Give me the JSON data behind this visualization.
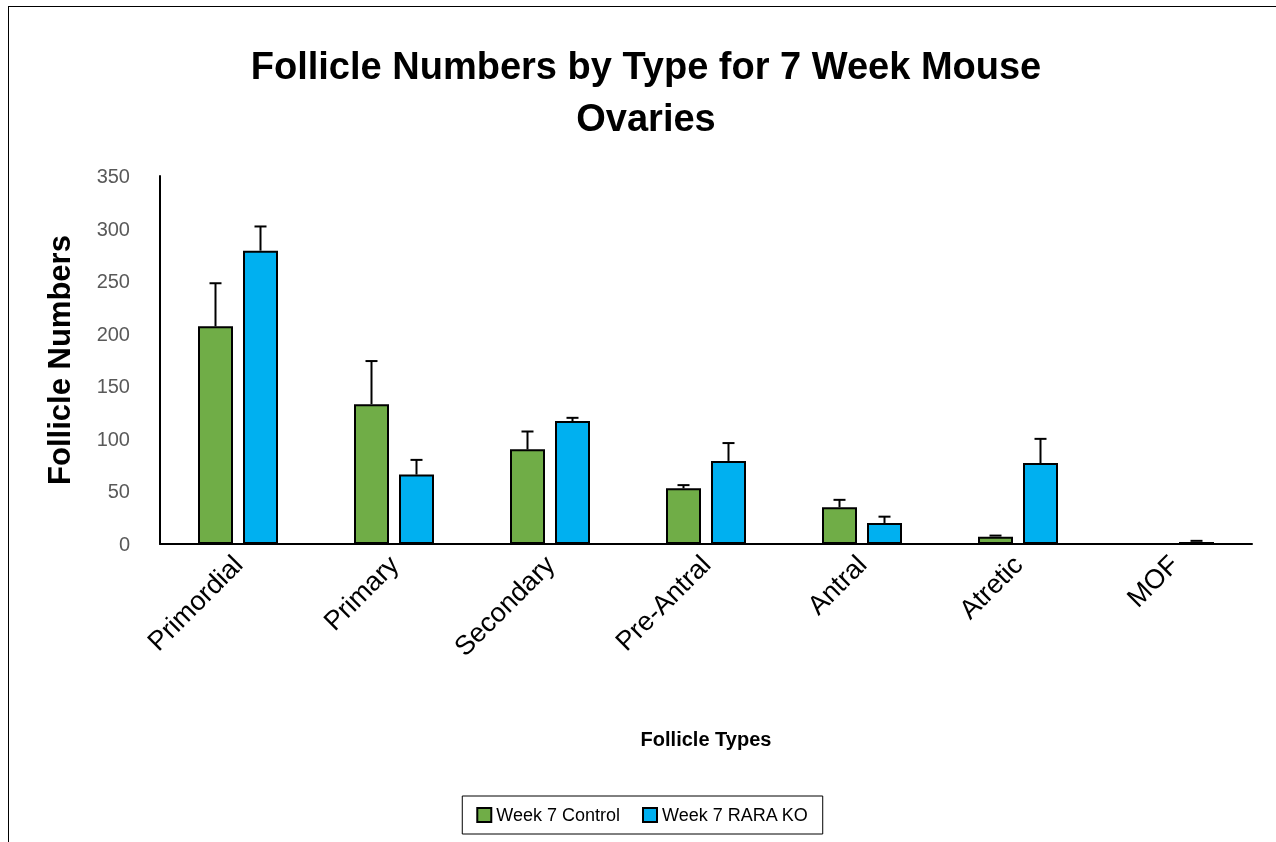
{
  "chart_data": {
    "type": "bar",
    "title": "Follicle Numbers by Type for 7 Week Mouse\nOvaries",
    "xlabel": "Follicle Types",
    "ylabel": "Follicle Numbers",
    "categories": [
      "Primordial",
      "Primary",
      "Secondary",
      "Pre-Antral",
      "Antral",
      "Atretic",
      "MOF"
    ],
    "series": [
      {
        "name": "Week 7 Control",
        "color": "#70ad47",
        "values": [
          207,
          133,
          90,
          53,
          35,
          7,
          null
        ],
        "errors": [
          [
            207,
            248
          ],
          [
            133,
            174
          ],
          [
            90,
            107
          ],
          [
            53,
            56
          ],
          [
            35,
            42
          ],
          [
            7,
            8
          ],
          null
        ]
      },
      {
        "name": "Week 7 RARA KO",
        "color": "#00b0f0",
        "values": [
          279,
          66,
          117,
          79,
          20,
          77,
          2
        ],
        "errors": [
          [
            279,
            302
          ],
          [
            66,
            80
          ],
          [
            117,
            120
          ],
          [
            79,
            96
          ],
          [
            20,
            26
          ],
          [
            77,
            100
          ],
          [
            2,
            3
          ]
        ]
      }
    ],
    "ylim": [
      0,
      350
    ],
    "yticks": [
      0,
      50,
      100,
      150,
      200,
      250,
      300,
      350
    ],
    "grid": false,
    "legend": "bottom"
  }
}
